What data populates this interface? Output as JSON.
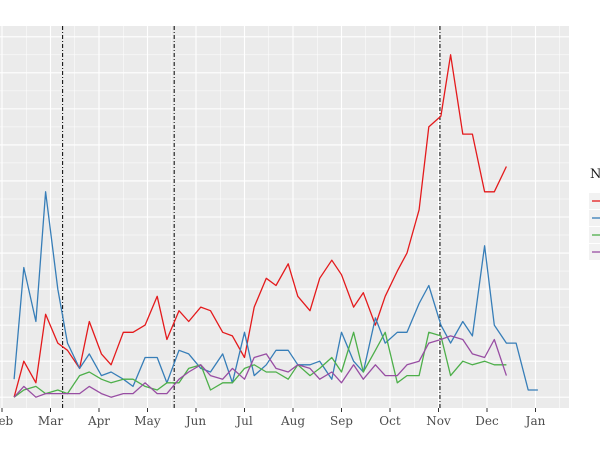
{
  "chart_data": {
    "type": "line",
    "title": "",
    "xlabel": "",
    "ylabel": "",
    "legend": {
      "title": "N",
      "placement": "right"
    },
    "grid": true,
    "x_tick_labels": [
      "Feb",
      "Mar",
      "Apr",
      "May",
      "Jun",
      "Jul",
      "Aug",
      "Sep",
      "Oct",
      "Nov",
      "Dec",
      "Jan"
    ],
    "x_tick_months": [
      0,
      1,
      2,
      3,
      4,
      5,
      6,
      7,
      8,
      9,
      10,
      11
    ],
    "x": [
      0.25,
      0.45,
      0.7,
      0.9,
      1.15,
      1.35,
      1.6,
      1.8,
      2.05,
      2.25,
      2.5,
      2.7,
      2.95,
      3.2,
      3.4,
      3.65,
      3.85,
      4.1,
      4.3,
      4.55,
      4.75,
      5.0,
      5.2,
      5.45,
      5.65,
      5.9,
      6.1,
      6.35,
      6.55,
      6.8,
      7.0,
      7.25,
      7.45,
      7.7,
      7.9,
      8.15,
      8.35,
      8.6,
      8.8,
      9.05,
      9.25,
      9.5,
      9.7,
      9.95,
      10.15,
      10.4,
      10.6,
      10.85,
      11.05
    ],
    "ylim": [
      -0.3,
      10.3
    ],
    "vlines": [
      1.25,
      3.55,
      9.03
    ],
    "series": [
      {
        "color": "#e41a1c",
        "values": [
          0.0,
          1.0,
          0.4,
          2.3,
          1.5,
          1.3,
          0.8,
          2.1,
          1.2,
          0.9,
          1.8,
          1.8,
          2.0,
          2.8,
          1.6,
          2.4,
          2.1,
          2.5,
          2.4,
          1.8,
          1.7,
          1.1,
          2.5,
          3.3,
          3.1,
          3.7,
          2.8,
          2.4,
          3.3,
          3.8,
          3.4,
          2.5,
          2.9,
          2.0,
          2.8,
          3.5,
          4.0,
          5.2,
          7.5,
          7.8,
          9.5,
          7.3,
          7.3,
          5.7,
          5.7,
          6.4,
          7.3,
          4.6,
          4.6
        ],
        "end_index": 46
      },
      {
        "color": "#377eb8",
        "values": [
          0.5,
          3.6,
          2.1,
          5.7,
          3.0,
          1.5,
          0.8,
          1.2,
          0.6,
          0.7,
          0.5,
          0.3,
          1.1,
          1.1,
          0.4,
          1.3,
          1.2,
          0.8,
          0.7,
          1.2,
          0.4,
          1.8,
          0.6,
          0.9,
          1.3,
          1.3,
          0.9,
          0.9,
          1.0,
          0.5,
          1.8,
          1.0,
          0.7,
          2.2,
          1.5,
          1.8,
          1.8,
          2.6,
          3.1,
          2.0,
          1.5,
          2.1,
          1.7,
          4.2,
          2.0,
          1.5,
          1.5,
          0.2,
          0.2
        ]
      },
      {
        "color": "#4daf4a",
        "values": [
          0.0,
          0.2,
          0.3,
          0.1,
          0.2,
          0.1,
          0.6,
          0.7,
          0.5,
          0.4,
          0.5,
          0.5,
          0.3,
          0.2,
          0.4,
          0.4,
          0.8,
          0.9,
          0.2,
          0.4,
          0.4,
          0.8,
          0.9,
          0.7,
          0.7,
          0.5,
          0.9,
          0.6,
          0.8,
          1.1,
          0.7,
          1.8,
          0.7,
          1.3,
          1.8,
          0.4,
          0.6,
          0.6,
          1.8,
          1.7,
          0.6,
          1.0,
          0.9,
          1.0,
          0.9,
          0.9,
          0.8,
          0.1,
          0.1
        ],
        "end_index": 46
      },
      {
        "color": "#984ea3",
        "values": [
          0.0,
          0.3,
          0.0,
          0.1,
          0.1,
          0.1,
          0.1,
          0.3,
          0.1,
          0.0,
          0.1,
          0.1,
          0.4,
          0.1,
          0.1,
          0.5,
          0.7,
          0.9,
          0.6,
          0.5,
          0.8,
          0.5,
          1.1,
          1.2,
          0.8,
          0.7,
          0.9,
          0.8,
          0.5,
          0.7,
          0.4,
          0.9,
          0.5,
          0.9,
          0.6,
          0.6,
          0.9,
          1.0,
          1.5,
          1.6,
          1.7,
          1.6,
          1.2,
          1.1,
          1.6,
          0.6,
          0.6,
          0.7,
          0.7
        ],
        "end_index": 46
      }
    ]
  }
}
